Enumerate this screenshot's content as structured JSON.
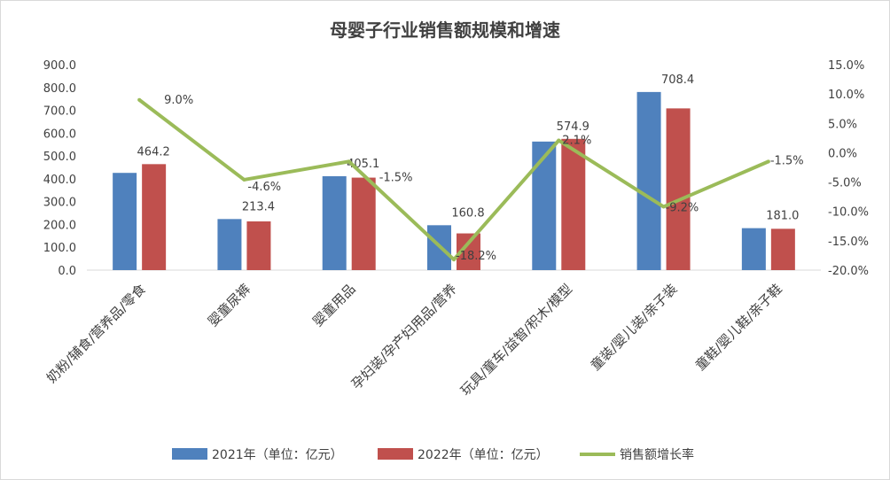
{
  "chart_data": {
    "type": "bar+line",
    "title": "母婴子行业销售额规模和增速",
    "categories": [
      "奶粉/辅食/营养品/零食",
      "婴童尿裤",
      "婴童用品",
      "孕妇装/孕产妇用品/营养",
      "玩具/童车/益智/积木/模型",
      "童装/婴儿装/亲子装",
      "童鞋/婴儿鞋/亲子鞋"
    ],
    "series": [
      {
        "name": "2021年（单位：亿元）",
        "type": "bar",
        "axis": "left",
        "color": "#4F81BD",
        "values": [
          425.9,
          223.7,
          411.3,
          196.6,
          563.1,
          780.2,
          183.8
        ]
      },
      {
        "name": "2022年（单位：亿元）",
        "type": "bar",
        "axis": "left",
        "color": "#C0504D",
        "values": [
          464.2,
          213.4,
          405.1,
          160.8,
          574.9,
          708.4,
          181.0
        ],
        "labels": [
          "464.2",
          "213.4",
          "405.1",
          "160.8",
          "574.9",
          "708.4",
          "181.0"
        ]
      },
      {
        "name": "销售额增长率",
        "type": "line",
        "axis": "right",
        "color": "#9BBB59",
        "values": [
          9.0,
          -4.6,
          -1.5,
          -18.2,
          2.1,
          -9.2,
          -1.5
        ],
        "labels": [
          "9.0%",
          "-4.6%",
          "-1.5%",
          "-18.2%",
          "2.1%",
          "-9.2%",
          "-1.5%"
        ]
      }
    ],
    "y_left": {
      "range": [
        0,
        900
      ],
      "ticks": [
        "0.0",
        "100.0",
        "200.0",
        "300.0",
        "400.0",
        "500.0",
        "600.0",
        "700.0",
        "800.0",
        "900.0"
      ]
    },
    "y_right": {
      "range": [
        -20,
        15
      ],
      "ticks": [
        "-20.0%",
        "-15.0%",
        "-10.0%",
        "-5.0%",
        "0.0%",
        "5.0%",
        "10.0%",
        "15.0%"
      ]
    },
    "grid": false,
    "legend": "bottom"
  }
}
